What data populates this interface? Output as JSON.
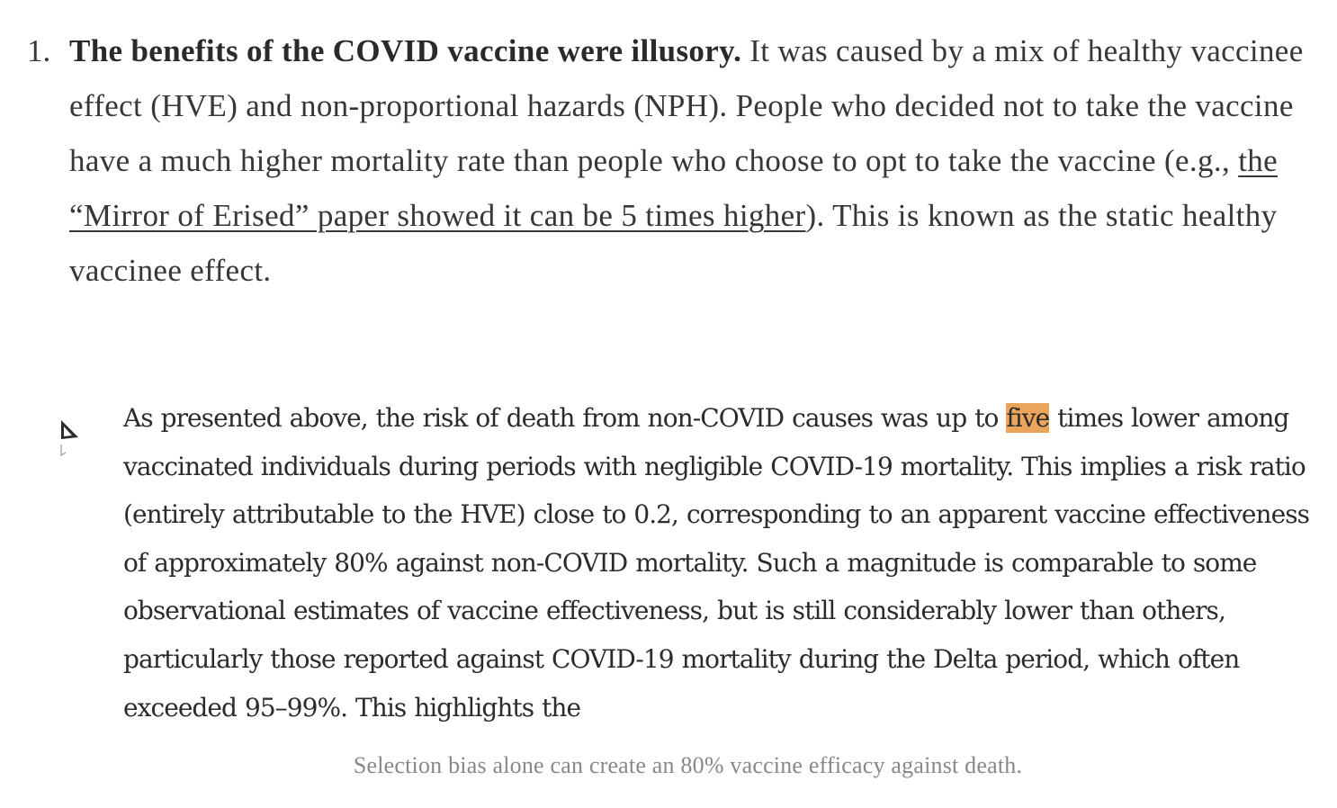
{
  "list_item": {
    "number": "1.",
    "bold_lead": "The benefits of the COVID vaccine were illusory.",
    "text_part1": " It was caused by a mix of healthy vaccinee effect (HVE) and non-proportional hazards (NPH). People who decided not to take the vaccine have a much higher mortality rate than people who choose to opt to take the vaccine (e.g., ",
    "link_text": "the “Mirror of Erised” paper showed it can be 5 times higher",
    "text_part2": "). This is known as the static healthy vaccinee effect."
  },
  "figure": {
    "excerpt_before": "As presented above, the risk of death from non-COVID causes was up to ",
    "excerpt_highlight": "five",
    "excerpt_after": " times lower among vaccinated individuals during periods with negligible COVID-19 mortality. This implies a risk ratio (entirely attributable to the HVE) close to 0.2, corresponding to an apparent vaccine effectiveness of approximately 80% against non-COVID mortality. Such a magnitude is comparable to some observational estimates of vaccine effectiveness, but is still considerably lower than others, particularly those reported against COVID-19 mortality during the Delta period, which often exceeded 95–99%. This highlights the",
    "highlight_color": "#eba45c",
    "cursor_icon": "mouse-pointer-icon",
    "caption": "Selection bias alone can create an 80% vaccine efficacy against death."
  }
}
